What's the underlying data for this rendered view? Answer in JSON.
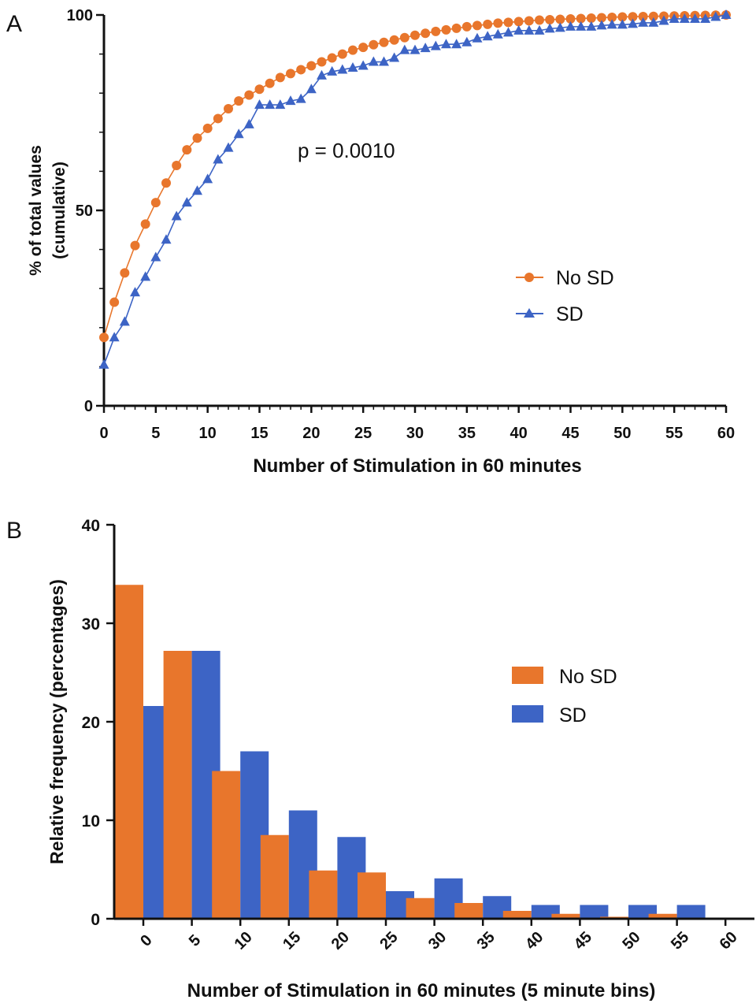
{
  "chart_data": [
    {
      "panel_label": "A",
      "type": "line",
      "title": "",
      "xlabel": "Number of Stimulation in 60 minutes",
      "ylabel_line1": "% of total values",
      "ylabel_line2": "(cumulative)",
      "xlim": [
        0,
        60
      ],
      "ylim": [
        0,
        100
      ],
      "x_ticks": [
        0,
        5,
        10,
        15,
        20,
        25,
        30,
        35,
        40,
        45,
        50,
        55,
        60
      ],
      "y_ticks": [
        0,
        50,
        100
      ],
      "annotation": "p = 0.0010",
      "legend_position": "right-middle",
      "series": [
        {
          "name": "No SD",
          "color": "#E8762C",
          "marker": "circle",
          "x": [
            0,
            1,
            2,
            3,
            4,
            5,
            6,
            7,
            8,
            9,
            10,
            11,
            12,
            13,
            14,
            15,
            16,
            17,
            18,
            19,
            20,
            21,
            22,
            23,
            24,
            25,
            26,
            27,
            28,
            29,
            30,
            31,
            32,
            33,
            34,
            35,
            36,
            37,
            38,
            39,
            40,
            41,
            42,
            43,
            44,
            45,
            46,
            47,
            48,
            49,
            50,
            51,
            52,
            53,
            54,
            55,
            56,
            57,
            58,
            59,
            60
          ],
          "y": [
            17.5,
            26.5,
            34,
            41,
            46.5,
            52,
            57,
            61.5,
            65.5,
            68.5,
            71,
            73.5,
            76,
            78,
            79.5,
            81,
            82.5,
            84,
            85,
            86,
            87,
            88,
            89,
            90,
            91,
            91.7,
            92.4,
            93,
            93.6,
            94.2,
            94.8,
            95.3,
            95.8,
            96.2,
            96.6,
            97,
            97.3,
            97.6,
            97.9,
            98.1,
            98.3,
            98.5,
            98.7,
            98.8,
            98.9,
            99,
            99.1,
            99.2,
            99.3,
            99.4,
            99.5,
            99.55,
            99.6,
            99.65,
            99.7,
            99.75,
            99.8,
            99.85,
            99.9,
            99.95,
            100
          ]
        },
        {
          "name": "SD",
          "color": "#3D64C5",
          "marker": "triangle",
          "x": [
            0,
            1,
            2,
            3,
            4,
            5,
            6,
            7,
            8,
            9,
            10,
            11,
            12,
            13,
            14,
            15,
            16,
            17,
            18,
            19,
            20,
            21,
            22,
            23,
            24,
            25,
            26,
            27,
            28,
            29,
            30,
            31,
            32,
            33,
            34,
            35,
            36,
            37,
            38,
            39,
            40,
            41,
            42,
            43,
            44,
            45,
            46,
            47,
            48,
            49,
            50,
            51,
            52,
            53,
            54,
            55,
            56,
            57,
            58,
            59,
            60
          ],
          "y": [
            10.5,
            17.5,
            21.5,
            29,
            33,
            38,
            42.5,
            48.5,
            52,
            55,
            58,
            63,
            66,
            69.5,
            72,
            77,
            77,
            77,
            78,
            78.5,
            81,
            84.5,
            85.5,
            86,
            86.5,
            87,
            88,
            88,
            89,
            91,
            91,
            91.5,
            92,
            92.5,
            92.5,
            93,
            94,
            94.5,
            95,
            95.5,
            96,
            96,
            96,
            96.5,
            96.7,
            97,
            97,
            97,
            97.3,
            97.5,
            97.5,
            97.7,
            98,
            98,
            98.5,
            99,
            99,
            99,
            99,
            99.5,
            100
          ]
        }
      ]
    },
    {
      "panel_label": "B",
      "type": "bar",
      "title": "",
      "xlabel": "Number of Stimulation in 60 minutes (5 minute bins)",
      "ylabel": "Relative frequency (percentages)",
      "ylim": [
        0,
        40
      ],
      "y_ticks": [
        0,
        10,
        20,
        30,
        40
      ],
      "categories": [
        "0",
        "5",
        "10",
        "15",
        "20",
        "25",
        "30",
        "35",
        "40",
        "45",
        "50",
        "55",
        "60"
      ],
      "legend_position": "right-middle",
      "series": [
        {
          "name": "No SD",
          "color": "#E8762C",
          "values": [
            33.9,
            27.2,
            15.0,
            8.5,
            4.9,
            4.7,
            2.1,
            1.6,
            0.8,
            0.5,
            0.2,
            0.5,
            0
          ]
        },
        {
          "name": "SD",
          "color": "#3D64C5",
          "values": [
            21.6,
            27.2,
            17.0,
            11.0,
            8.3,
            2.8,
            4.1,
            2.3,
            1.4,
            1.4,
            1.4,
            1.4,
            0
          ]
        }
      ]
    }
  ]
}
